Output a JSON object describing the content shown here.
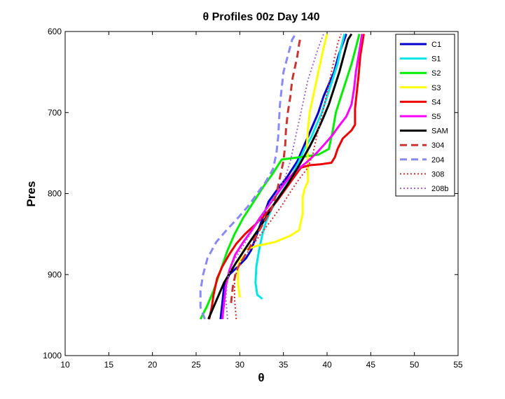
{
  "chart_data": {
    "type": "line",
    "title": "θ Profiles 00z Day 140",
    "xlabel": "θ",
    "ylabel": "Pres",
    "xlim": [
      10,
      55
    ],
    "ylim": [
      600,
      1000
    ],
    "y_reversed": true,
    "grid": false,
    "legend_position": "top-right",
    "xticks": [
      10,
      15,
      20,
      25,
      30,
      35,
      40,
      45,
      50,
      55
    ],
    "yticks": [
      600,
      700,
      800,
      900,
      1000
    ],
    "series": [
      {
        "name": "C1",
        "color": "#0000cc",
        "dash": "solid",
        "width": 3,
        "points": [
          [
            27.8,
            955
          ],
          [
            28.0,
            935
          ],
          [
            28.2,
            915
          ],
          [
            28.8,
            900
          ],
          [
            29.8,
            890
          ],
          [
            30.7,
            880
          ],
          [
            31.3,
            870
          ],
          [
            31.8,
            855
          ],
          [
            32.3,
            840
          ],
          [
            32.8,
            825
          ],
          [
            33.3,
            810
          ],
          [
            34.3,
            795
          ],
          [
            35.4,
            780
          ],
          [
            36.0,
            770
          ],
          [
            36.6,
            760
          ],
          [
            37.2,
            745
          ],
          [
            37.8,
            730
          ],
          [
            38.4,
            715
          ],
          [
            39.0,
            700
          ],
          [
            39.6,
            680
          ],
          [
            40.2,
            665
          ],
          [
            40.8,
            650
          ],
          [
            41.3,
            630
          ],
          [
            41.8,
            615
          ],
          [
            42.2,
            603
          ]
        ]
      },
      {
        "name": "S1",
        "color": "#00e6e6",
        "dash": "solid",
        "width": 3,
        "points": [
          [
            32.6,
            930
          ],
          [
            32.0,
            925
          ],
          [
            31.8,
            910
          ],
          [
            31.9,
            890
          ],
          [
            32.2,
            870
          ],
          [
            32.6,
            850
          ],
          [
            33.0,
            835
          ],
          [
            33.6,
            820
          ],
          [
            34.4,
            805
          ],
          [
            35.3,
            790
          ],
          [
            36.1,
            775
          ],
          [
            36.8,
            760
          ],
          [
            37.4,
            745
          ],
          [
            38.2,
            730
          ],
          [
            38.8,
            715
          ],
          [
            39.4,
            700
          ],
          [
            40.0,
            680
          ],
          [
            40.6,
            660
          ],
          [
            41.2,
            640
          ],
          [
            41.6,
            620
          ],
          [
            42.0,
            603
          ]
        ]
      },
      {
        "name": "S2",
        "color": "#00ee00",
        "dash": "solid",
        "width": 3,
        "points": [
          [
            25.5,
            955
          ],
          [
            26.2,
            940
          ],
          [
            27.0,
            920
          ],
          [
            27.8,
            895
          ],
          [
            28.6,
            870
          ],
          [
            29.4,
            850
          ],
          [
            30.4,
            830
          ],
          [
            31.6,
            810
          ],
          [
            32.8,
            790
          ],
          [
            33.8,
            775
          ],
          [
            34.8,
            758
          ],
          [
            37.0,
            755
          ],
          [
            39.0,
            752
          ],
          [
            40.2,
            745
          ],
          [
            40.6,
            725
          ],
          [
            41.0,
            700
          ],
          [
            41.6,
            680
          ],
          [
            42.2,
            660
          ],
          [
            42.8,
            640
          ],
          [
            43.3,
            620
          ],
          [
            43.7,
            603
          ]
        ]
      },
      {
        "name": "S3",
        "color": "#ffff00",
        "dash": "solid",
        "width": 3,
        "points": [
          [
            30.0,
            928
          ],
          [
            29.8,
            910
          ],
          [
            29.8,
            890
          ],
          [
            30.4,
            870
          ],
          [
            31.8,
            865
          ],
          [
            34.0,
            860
          ],
          [
            35.8,
            852
          ],
          [
            36.8,
            845
          ],
          [
            37.2,
            825
          ],
          [
            37.2,
            805
          ],
          [
            37.4,
            795
          ],
          [
            37.8,
            785
          ],
          [
            37.8,
            760
          ],
          [
            37.7,
            740
          ],
          [
            37.8,
            720
          ],
          [
            38.0,
            700
          ],
          [
            38.4,
            680
          ],
          [
            38.8,
            660
          ],
          [
            39.2,
            640
          ],
          [
            39.6,
            620
          ],
          [
            40.0,
            603
          ]
        ]
      },
      {
        "name": "S4",
        "color": "#ee0000",
        "dash": "solid",
        "width": 3,
        "points": [
          [
            26.5,
            955
          ],
          [
            26.8,
            940
          ],
          [
            27.0,
            925
          ],
          [
            27.4,
            905
          ],
          [
            28.0,
            890
          ],
          [
            28.8,
            875
          ],
          [
            29.6,
            862
          ],
          [
            30.6,
            850
          ],
          [
            31.8,
            838
          ],
          [
            33.0,
            825
          ],
          [
            34.2,
            810
          ],
          [
            35.2,
            795
          ],
          [
            36.2,
            780
          ],
          [
            37.0,
            768
          ],
          [
            38.0,
            765
          ],
          [
            39.2,
            764
          ],
          [
            40.5,
            762
          ],
          [
            40.9,
            755
          ],
          [
            41.2,
            745
          ],
          [
            41.8,
            732
          ],
          [
            42.8,
            722
          ],
          [
            43.2,
            715
          ],
          [
            43.2,
            695
          ],
          [
            43.4,
            675
          ],
          [
            43.6,
            655
          ],
          [
            43.8,
            630
          ],
          [
            44.2,
            603
          ]
        ]
      },
      {
        "name": "S5",
        "color": "#ff00ff",
        "dash": "solid",
        "width": 3,
        "points": [
          [
            28.0,
            955
          ],
          [
            28.2,
            935
          ],
          [
            28.4,
            915
          ],
          [
            28.8,
            895
          ],
          [
            29.5,
            875
          ],
          [
            30.4,
            860
          ],
          [
            31.4,
            845
          ],
          [
            32.3,
            830
          ],
          [
            33.3,
            815
          ],
          [
            34.3,
            800
          ],
          [
            35.3,
            785
          ],
          [
            36.4,
            772
          ],
          [
            37.6,
            762
          ],
          [
            38.8,
            750
          ],
          [
            39.8,
            738
          ],
          [
            40.6,
            728
          ],
          [
            41.4,
            716
          ],
          [
            42.2,
            705
          ],
          [
            42.8,
            690
          ],
          [
            43.1,
            670
          ],
          [
            43.3,
            650
          ],
          [
            43.6,
            630
          ],
          [
            44.0,
            603
          ]
        ]
      },
      {
        "name": "SAM",
        "color": "#000000",
        "dash": "solid",
        "width": 3,
        "points": [
          [
            26.4,
            955
          ],
          [
            27.2,
            935
          ],
          [
            28.2,
            910
          ],
          [
            29.6,
            885
          ],
          [
            31.0,
            862
          ],
          [
            32.4,
            840
          ],
          [
            33.8,
            815
          ],
          [
            35.4,
            790
          ],
          [
            36.8,
            765
          ],
          [
            38.0,
            742
          ],
          [
            38.8,
            725
          ],
          [
            39.5,
            708
          ],
          [
            40.2,
            690
          ],
          [
            40.8,
            670
          ],
          [
            41.4,
            650
          ],
          [
            41.9,
            630
          ],
          [
            42.4,
            610
          ],
          [
            42.8,
            603
          ]
        ]
      },
      {
        "name": "304",
        "color": "#cc3333",
        "dash": "dashed",
        "width": 3,
        "points": [
          [
            29.0,
            935
          ],
          [
            29.2,
            915
          ],
          [
            29.6,
            895
          ],
          [
            30.4,
            880
          ],
          [
            31.2,
            865
          ],
          [
            32.0,
            850
          ],
          [
            32.8,
            835
          ],
          [
            33.6,
            820
          ],
          [
            34.2,
            800
          ],
          [
            34.6,
            780
          ],
          [
            35.0,
            760
          ],
          [
            35.2,
            740
          ],
          [
            35.3,
            720
          ],
          [
            35.5,
            700
          ],
          [
            35.8,
            680
          ],
          [
            36.0,
            660
          ],
          [
            36.3,
            645
          ],
          [
            36.6,
            630
          ],
          [
            36.8,
            615
          ],
          [
            37.0,
            605
          ]
        ]
      },
      {
        "name": "204",
        "color": "#8888ff",
        "dash": "dashed",
        "width": 3,
        "points": [
          [
            26.0,
            955
          ],
          [
            25.5,
            940
          ],
          [
            25.5,
            920
          ],
          [
            25.8,
            900
          ],
          [
            26.3,
            880
          ],
          [
            27.3,
            860
          ],
          [
            28.5,
            845
          ],
          [
            29.8,
            830
          ],
          [
            31.0,
            815
          ],
          [
            32.0,
            800
          ],
          [
            33.0,
            785
          ],
          [
            33.8,
            770
          ],
          [
            34.2,
            750
          ],
          [
            34.4,
            730
          ],
          [
            34.5,
            710
          ],
          [
            34.6,
            690
          ],
          [
            34.8,
            670
          ],
          [
            35.0,
            650
          ],
          [
            35.5,
            630
          ],
          [
            36.0,
            610
          ],
          [
            36.4,
            603
          ]
        ]
      },
      {
        "name": "308",
        "color": "#cc3333",
        "dash": "dotted",
        "width": 2,
        "points": [
          [
            29.6,
            955
          ],
          [
            29.4,
            930
          ],
          [
            29.4,
            905
          ],
          [
            30.0,
            885
          ],
          [
            31.2,
            868
          ],
          [
            32.4,
            850
          ],
          [
            33.6,
            833
          ],
          [
            34.8,
            815
          ],
          [
            35.8,
            798
          ],
          [
            36.8,
            782
          ],
          [
            37.8,
            768
          ],
          [
            38.4,
            750
          ],
          [
            38.8,
            730
          ],
          [
            39.2,
            712
          ],
          [
            39.6,
            695
          ],
          [
            40.0,
            675
          ],
          [
            40.4,
            655
          ],
          [
            40.8,
            635
          ],
          [
            41.2,
            615
          ],
          [
            41.6,
            603
          ]
        ]
      },
      {
        "name": "208b",
        "color": "#aa66cc",
        "dash": "dotted",
        "width": 2,
        "points": [
          [
            28.6,
            955
          ],
          [
            28.4,
            930
          ],
          [
            28.6,
            905
          ],
          [
            29.2,
            885
          ],
          [
            30.2,
            868
          ],
          [
            31.2,
            850
          ],
          [
            32.3,
            832
          ],
          [
            33.3,
            815
          ],
          [
            34.3,
            798
          ],
          [
            35.2,
            780
          ],
          [
            35.8,
            760
          ],
          [
            36.2,
            740
          ],
          [
            36.6,
            720
          ],
          [
            37.0,
            700
          ],
          [
            37.4,
            680
          ],
          [
            37.8,
            660
          ],
          [
            38.4,
            640
          ],
          [
            39.0,
            620
          ],
          [
            39.6,
            603
          ]
        ]
      }
    ]
  }
}
